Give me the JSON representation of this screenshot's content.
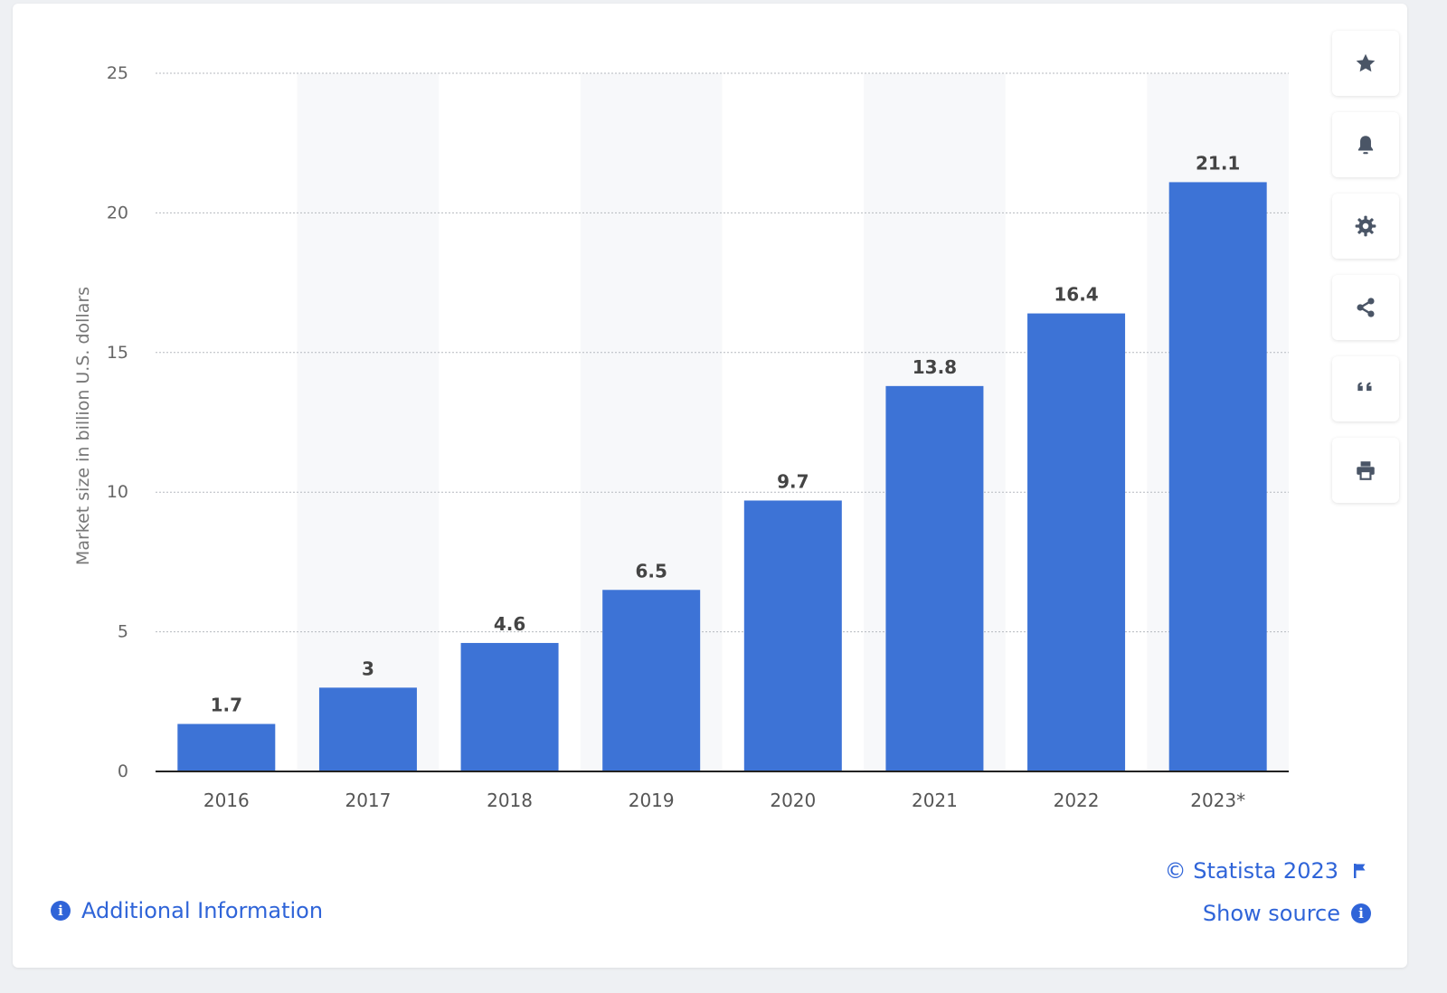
{
  "chart_data": {
    "type": "bar",
    "categories": [
      "2016",
      "2017",
      "2018",
      "2019",
      "2020",
      "2021",
      "2022",
      "2023*"
    ],
    "values": [
      1.7,
      3,
      4.6,
      6.5,
      9.7,
      13.8,
      16.4,
      21.1
    ],
    "value_labels": [
      "1.7",
      "3",
      "4.6",
      "6.5",
      "9.7",
      "13.8",
      "16.4",
      "21.1"
    ],
    "ylabel": "Market size in billion U.S. dollars",
    "ylim": [
      0,
      25
    ],
    "yticks": [
      "0",
      "5",
      "10",
      "15",
      "20",
      "25"
    ],
    "ytick_values": [
      0,
      5,
      10,
      15,
      20,
      25
    ],
    "grid": true,
    "bar_color": "#3d73d6"
  },
  "toolbar": {
    "items": [
      "star-icon",
      "bell-icon",
      "gear-icon",
      "share-icon",
      "quote-icon",
      "print-icon"
    ]
  },
  "footer": {
    "additional_info": "Additional Information",
    "copyright": "© Statista 2023",
    "show_source": "Show source"
  },
  "colors": {
    "accent": "#2f64d8",
    "icon": "#4a5566"
  }
}
